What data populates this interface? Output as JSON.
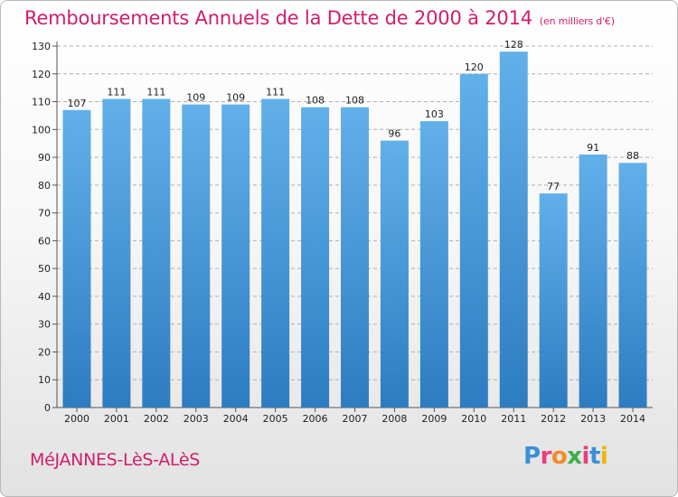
{
  "header": {
    "title": "Remboursements Annuels de la Dette de 2000 à 2014",
    "subtitle": "(en milliers d'€)"
  },
  "footer": {
    "commune": "MéJANNES-LèS-ALèS",
    "brand": {
      "text": "Proxiti",
      "letters": [
        {
          "char": "P",
          "color": "#3a8fd6"
        },
        {
          "char": "r",
          "color": "#e6407a"
        },
        {
          "char": "o",
          "color": "#f28c28"
        },
        {
          "char": "x",
          "color": "#3cae49"
        },
        {
          "char": "i",
          "color": "#e6407a"
        },
        {
          "char": "t",
          "color": "#3a8fd6"
        },
        {
          "char": "i",
          "color": "#f2b400"
        }
      ]
    }
  },
  "colors": {
    "accent": "#d01e6e",
    "bar_top": "#62b0ea",
    "bar_bottom": "#2d7cc0",
    "grid": "#b0b0b0"
  },
  "chart_data": {
    "type": "bar",
    "title": "Remboursements Annuels de la Dette de 2000 à 2014",
    "subtitle": "(en milliers d'€)",
    "xlabel": "",
    "ylabel": "",
    "categories": [
      "2000",
      "2001",
      "2002",
      "2003",
      "2004",
      "2005",
      "2006",
      "2007",
      "2008",
      "2009",
      "2010",
      "2011",
      "2012",
      "2013",
      "2014"
    ],
    "values": [
      107,
      111,
      111,
      109,
      109,
      111,
      108,
      108,
      96,
      103,
      120,
      128,
      77,
      91,
      88
    ],
    "ylim": [
      0,
      130
    ],
    "yticks": [
      0,
      10,
      20,
      30,
      40,
      50,
      60,
      70,
      80,
      90,
      100,
      110,
      120,
      130
    ],
    "grid": true,
    "grid_style": "dashed-horizontal"
  }
}
